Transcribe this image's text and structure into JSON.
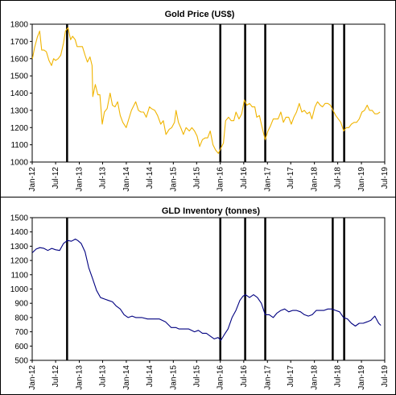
{
  "chart_data": [
    {
      "type": "line",
      "title": "Gold  Price (US$)",
      "ylim": [
        1000,
        1800
      ],
      "yticks": [
        1000,
        1100,
        1200,
        1300,
        1400,
        1500,
        1600,
        1700,
        1800
      ],
      "xlim": [
        "2012-01-01",
        "2019-07-01"
      ],
      "xticks": [
        {
          "label": "Jan-12",
          "date": "2012-01-01"
        },
        {
          "label": "Jul-12",
          "date": "2012-07-01"
        },
        {
          "label": "Jan-13",
          "date": "2013-01-01"
        },
        {
          "label": "Jul-13",
          "date": "2013-07-01"
        },
        {
          "label": "Jan-14",
          "date": "2014-01-01"
        },
        {
          "label": "Jul-14",
          "date": "2014-07-01"
        },
        {
          "label": "Jan-15",
          "date": "2015-01-01"
        },
        {
          "label": "Jul-15",
          "date": "2015-07-01"
        },
        {
          "label": "Jan-16",
          "date": "2016-01-01"
        },
        {
          "label": "Jul-16",
          "date": "2016-07-01"
        },
        {
          "label": "Jan-17",
          "date": "2017-01-01"
        },
        {
          "label": "Jul-17",
          "date": "2017-07-01"
        },
        {
          "label": "Jan-18",
          "date": "2018-01-01"
        },
        {
          "label": "Jul-18",
          "date": "2018-07-01"
        },
        {
          "label": "Jan-19",
          "date": "2019-01-01"
        },
        {
          "label": "Jul-19",
          "date": "2019-07-01"
        }
      ],
      "series": [
        {
          "color": "#f0b400",
          "x": [
            "2012-01-03",
            "2012-01-20",
            "2012-02-10",
            "2012-02-28",
            "2012-03-15",
            "2012-04-01",
            "2012-04-20",
            "2012-05-10",
            "2012-05-30",
            "2012-06-15",
            "2012-07-01",
            "2012-07-20",
            "2012-08-10",
            "2012-08-31",
            "2012-09-15",
            "2012-10-05",
            "2012-10-25",
            "2012-11-10",
            "2012-11-30",
            "2012-12-15",
            "2013-01-05",
            "2013-01-25",
            "2013-02-15",
            "2013-03-05",
            "2013-03-25",
            "2013-04-10",
            "2013-04-16",
            "2013-05-05",
            "2013-05-25",
            "2013-06-10",
            "2013-06-28",
            "2013-07-15",
            "2013-08-05",
            "2013-08-28",
            "2013-09-15",
            "2013-10-05",
            "2013-10-25",
            "2013-11-15",
            "2013-12-05",
            "2013-12-31",
            "2014-01-20",
            "2014-02-10",
            "2014-03-15",
            "2014-04-05",
            "2014-04-25",
            "2014-05-15",
            "2014-06-05",
            "2014-06-30",
            "2014-07-15",
            "2014-08-10",
            "2014-09-01",
            "2014-09-25",
            "2014-10-15",
            "2014-11-05",
            "2014-11-30",
            "2014-12-20",
            "2015-01-10",
            "2015-01-22",
            "2015-02-10",
            "2015-03-05",
            "2015-03-20",
            "2015-04-10",
            "2015-05-05",
            "2015-05-25",
            "2015-06-15",
            "2015-07-05",
            "2015-07-24",
            "2015-08-15",
            "2015-09-05",
            "2015-09-25",
            "2015-10-15",
            "2015-11-05",
            "2015-11-25",
            "2015-12-17",
            "2016-01-05",
            "2016-01-25",
            "2016-02-11",
            "2016-03-05",
            "2016-03-25",
            "2016-04-15",
            "2016-05-02",
            "2016-05-25",
            "2016-06-15",
            "2016-07-06",
            "2016-07-25",
            "2016-08-15",
            "2016-09-05",
            "2016-09-25",
            "2016-10-10",
            "2016-10-31",
            "2016-11-15",
            "2016-12-01",
            "2016-12-15",
            "2017-01-05",
            "2017-01-25",
            "2017-02-15",
            "2017-03-05",
            "2017-03-25",
            "2017-04-15",
            "2017-05-05",
            "2017-05-25",
            "2017-06-15",
            "2017-07-05",
            "2017-07-25",
            "2017-08-15",
            "2017-09-05",
            "2017-09-25",
            "2017-10-15",
            "2017-11-05",
            "2017-11-25",
            "2017-12-12",
            "2018-01-05",
            "2018-01-25",
            "2018-02-15",
            "2018-03-05",
            "2018-03-25",
            "2018-04-15",
            "2018-05-05",
            "2018-05-25",
            "2018-06-15",
            "2018-07-05",
            "2018-07-25",
            "2018-08-16",
            "2018-09-05",
            "2018-09-25",
            "2018-10-15",
            "2018-11-05",
            "2018-11-25",
            "2018-12-15",
            "2019-01-05",
            "2019-01-25",
            "2019-02-15",
            "2019-03-05",
            "2019-03-25",
            "2019-04-15",
            "2019-05-05",
            "2019-05-25"
          ],
          "y": [
            1600,
            1665,
            1725,
            1760,
            1650,
            1650,
            1640,
            1590,
            1560,
            1600,
            1590,
            1600,
            1620,
            1690,
            1760,
            1780,
            1710,
            1730,
            1710,
            1670,
            1670,
            1670,
            1620,
            1580,
            1610,
            1560,
            1380,
            1450,
            1390,
            1390,
            1220,
            1290,
            1310,
            1400,
            1330,
            1320,
            1350,
            1270,
            1230,
            1200,
            1250,
            1300,
            1350,
            1300,
            1290,
            1290,
            1260,
            1320,
            1310,
            1300,
            1270,
            1220,
            1240,
            1160,
            1190,
            1200,
            1230,
            1300,
            1230,
            1190,
            1160,
            1200,
            1180,
            1200,
            1180,
            1150,
            1090,
            1130,
            1140,
            1140,
            1180,
            1100,
            1070,
            1050,
            1080,
            1110,
            1240,
            1260,
            1240,
            1240,
            1290,
            1250,
            1280,
            1360,
            1330,
            1340,
            1320,
            1320,
            1260,
            1270,
            1220,
            1170,
            1130,
            1180,
            1210,
            1250,
            1250,
            1250,
            1290,
            1230,
            1260,
            1260,
            1220,
            1260,
            1290,
            1340,
            1290,
            1300,
            1280,
            1290,
            1250,
            1320,
            1350,
            1330,
            1320,
            1340,
            1340,
            1330,
            1300,
            1270,
            1250,
            1230,
            1180,
            1200,
            1200,
            1220,
            1230,
            1230,
            1250,
            1290,
            1300,
            1330,
            1300,
            1300,
            1280,
            1280,
            1290
          ]
        }
      ],
      "vlines": [
        "2012-09-28",
        "2016-01-01",
        "2016-07-12",
        "2016-12-15",
        "2018-05-23",
        "2018-08-20"
      ]
    },
    {
      "type": "line",
      "title": "GLD Inventory (tonnes)",
      "ylim": [
        500,
        1500
      ],
      "yticks": [
        500,
        600,
        700,
        800,
        900,
        1000,
        1100,
        1200,
        1300,
        1400,
        1500
      ],
      "xlim": [
        "2012-01-01",
        "2019-07-01"
      ],
      "xticks": [
        {
          "label": "Jan-12",
          "date": "2012-01-01"
        },
        {
          "label": "Jul-12",
          "date": "2012-07-01"
        },
        {
          "label": "Jan-13",
          "date": "2013-01-01"
        },
        {
          "label": "Jul-13",
          "date": "2013-07-01"
        },
        {
          "label": "Jan-14",
          "date": "2014-01-01"
        },
        {
          "label": "Jul-14",
          "date": "2014-07-01"
        },
        {
          "label": "Jan-15",
          "date": "2015-01-01"
        },
        {
          "label": "Jul-15",
          "date": "2015-07-01"
        },
        {
          "label": "Jan-16",
          "date": "2016-01-01"
        },
        {
          "label": "Jul-16",
          "date": "2016-07-01"
        },
        {
          "label": "Jan-17",
          "date": "2017-01-01"
        },
        {
          "label": "Jul-17",
          "date": "2017-07-01"
        },
        {
          "label": "Jan-18",
          "date": "2018-01-01"
        },
        {
          "label": "Jul-18",
          "date": "2018-07-01"
        },
        {
          "label": "Jan-19",
          "date": "2019-01-01"
        },
        {
          "label": "Jul-19",
          "date": "2019-07-01"
        }
      ],
      "series": [
        {
          "color": "#000080",
          "x": [
            "2012-01-03",
            "2012-02-01",
            "2012-03-01",
            "2012-04-01",
            "2012-05-01",
            "2012-06-01",
            "2012-07-01",
            "2012-08-01",
            "2012-09-01",
            "2012-10-01",
            "2012-11-01",
            "2012-12-01",
            "2012-12-20",
            "2013-01-15",
            "2013-02-15",
            "2013-03-15",
            "2013-04-15",
            "2013-05-15",
            "2013-06-15",
            "2013-07-15",
            "2013-08-15",
            "2013-09-15",
            "2013-10-15",
            "2013-11-15",
            "2013-12-15",
            "2014-01-15",
            "2014-02-15",
            "2014-03-15",
            "2014-05-01",
            "2014-06-15",
            "2014-08-01",
            "2014-09-15",
            "2014-11-01",
            "2014-12-15",
            "2015-01-20",
            "2015-02-15",
            "2015-03-15",
            "2015-05-01",
            "2015-06-15",
            "2015-07-15",
            "2015-08-15",
            "2015-09-15",
            "2015-10-15",
            "2015-11-15",
            "2015-12-15",
            "2016-01-05",
            "2016-02-01",
            "2016-03-01",
            "2016-04-01",
            "2016-05-01",
            "2016-06-01",
            "2016-06-25",
            "2016-07-15",
            "2016-08-15",
            "2016-09-15",
            "2016-10-15",
            "2016-11-15",
            "2016-12-15",
            "2017-01-15",
            "2017-02-15",
            "2017-03-15",
            "2017-04-15",
            "2017-05-15",
            "2017-06-15",
            "2017-07-15",
            "2017-08-15",
            "2017-09-15",
            "2017-10-15",
            "2017-11-15",
            "2017-12-15",
            "2018-01-15",
            "2018-02-15",
            "2018-03-15",
            "2018-04-15",
            "2018-05-15",
            "2018-06-15",
            "2018-07-15",
            "2018-08-15",
            "2018-09-15",
            "2018-10-15",
            "2018-11-15",
            "2018-12-15",
            "2019-01-15",
            "2019-02-15",
            "2019-03-15",
            "2019-04-15",
            "2019-05-15",
            "2019-06-01"
          ],
          "y": [
            1255,
            1280,
            1290,
            1285,
            1270,
            1285,
            1275,
            1270,
            1320,
            1340,
            1335,
            1350,
            1340,
            1320,
            1260,
            1150,
            1070,
            990,
            940,
            930,
            920,
            910,
            880,
            860,
            820,
            800,
            810,
            800,
            800,
            790,
            790,
            790,
            770,
            730,
            730,
            720,
            720,
            720,
            700,
            710,
            690,
            690,
            670,
            650,
            660,
            640,
            680,
            720,
            800,
            850,
            920,
            950,
            960,
            940,
            960,
            940,
            900,
            820,
            820,
            800,
            830,
            850,
            860,
            840,
            850,
            850,
            840,
            820,
            810,
            820,
            850,
            850,
            850,
            860,
            860,
            850,
            840,
            800,
            790,
            760,
            740,
            760,
            760,
            770,
            780,
            810,
            760,
            745
          ]
        }
      ],
      "vlines": [
        "2012-09-28",
        "2016-01-01",
        "2016-07-12",
        "2016-12-15",
        "2018-05-23",
        "2018-08-20"
      ]
    }
  ]
}
